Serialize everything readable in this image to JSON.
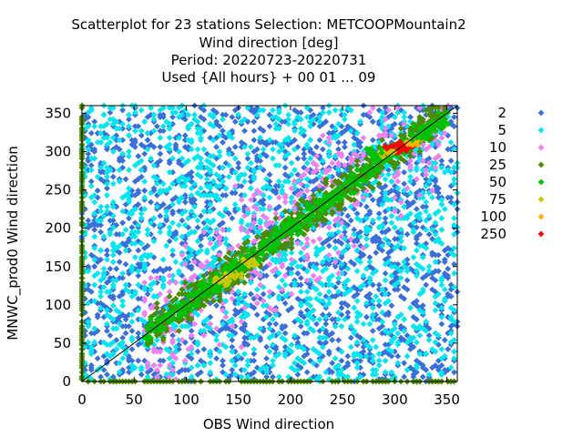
{
  "chart_data": {
    "type": "scatter",
    "title_lines": [
      "Scatterplot for   23 stations Selection: METCOOPMountain2",
      "Wind direction [deg]",
      "Period: 20220723-20220731",
      "Used {All hours} + 00 01 ... 09"
    ],
    "xlabel": "OBS Wind direction",
    "ylabel": "MNWC_prod0 Wind direction",
    "xlim": [
      0,
      360
    ],
    "ylim": [
      0,
      360
    ],
    "xticks": [
      0,
      50,
      100,
      150,
      200,
      250,
      300,
      350
    ],
    "yticks": [
      0,
      50,
      100,
      150,
      200,
      250,
      300,
      350
    ],
    "diagonal": true,
    "legend": {
      "placement": "right",
      "entries": [
        {
          "label": "2",
          "color": "#3a6fd8"
        },
        {
          "label": "5",
          "color": "#00e5ee"
        },
        {
          "label": "10",
          "color": "#ee82ee"
        },
        {
          "label": "25",
          "color": "#4e8a00"
        },
        {
          "label": "50",
          "color": "#00c000"
        },
        {
          "label": "75",
          "color": "#c8c800"
        },
        {
          "label": "100",
          "color": "#ffb000"
        },
        {
          "label": "250",
          "color": "#ff0000"
        }
      ]
    },
    "density_clusters": [
      {
        "x": 305,
        "y": 305,
        "class": "250"
      },
      {
        "x": 310,
        "y": 308,
        "class": "250"
      },
      {
        "x": 298,
        "y": 302,
        "class": "250"
      },
      {
        "x": 315,
        "y": 312,
        "class": "100"
      },
      {
        "x": 320,
        "y": 314,
        "class": "100"
      },
      {
        "x": 292,
        "y": 298,
        "class": "75"
      },
      {
        "x": 135,
        "y": 130,
        "class": "75"
      },
      {
        "x": 145,
        "y": 140,
        "class": "75"
      },
      {
        "x": 160,
        "y": 155,
        "class": "75"
      },
      {
        "x": 325,
        "y": 320,
        "class": "50"
      },
      {
        "x": 280,
        "y": 300,
        "class": "50"
      },
      {
        "x": 240,
        "y": 240,
        "class": "50"
      },
      {
        "x": 200,
        "y": 205,
        "class": "50"
      },
      {
        "x": 180,
        "y": 175,
        "class": "50"
      },
      {
        "x": 150,
        "y": 150,
        "class": "50"
      },
      {
        "x": 120,
        "y": 125,
        "class": "50"
      },
      {
        "x": 340,
        "y": 335,
        "class": "50"
      }
    ]
  }
}
